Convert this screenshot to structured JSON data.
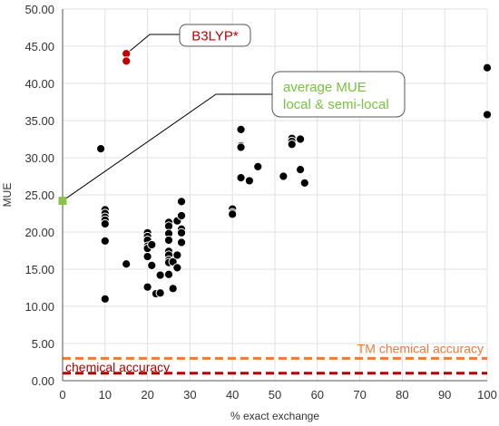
{
  "chart_data": {
    "type": "scatter",
    "xlabel": "% exact exchange",
    "ylabel": "MUE",
    "xlim": [
      0,
      100
    ],
    "ylim": [
      0,
      50
    ],
    "x_ticks": [
      0,
      10,
      20,
      30,
      40,
      50,
      60,
      70,
      80,
      90,
      100
    ],
    "y_ticks": [
      "0.00",
      "5.00",
      "10.00",
      "15.00",
      "20.00",
      "25.00",
      "30.00",
      "35.00",
      "40.00",
      "45.00",
      "50.00"
    ],
    "grid": true,
    "series": [
      {
        "color": "#000000",
        "points": [
          [
            9,
            31.2
          ],
          [
            10,
            23.0
          ],
          [
            10,
            22.5
          ],
          [
            10,
            22.0
          ],
          [
            10,
            21.6
          ],
          [
            10,
            21.1
          ],
          [
            10,
            18.8
          ],
          [
            10,
            11.0
          ],
          [
            15,
            15.7
          ],
          [
            20,
            19.9
          ],
          [
            20,
            19.4
          ],
          [
            20,
            18.9
          ],
          [
            20,
            18.1
          ],
          [
            20,
            17.8
          ],
          [
            20,
            16.7
          ],
          [
            20,
            12.6
          ],
          [
            21,
            18.3
          ],
          [
            21,
            15.5
          ],
          [
            22,
            11.7
          ],
          [
            23,
            11.8
          ],
          [
            23,
            14.2
          ],
          [
            25,
            21.3
          ],
          [
            25,
            20.8
          ],
          [
            25,
            19.8
          ],
          [
            25,
            18.9
          ],
          [
            25,
            17.4
          ],
          [
            25,
            16.9
          ],
          [
            25,
            16.2
          ],
          [
            25,
            15.9
          ],
          [
            25,
            14.3
          ],
          [
            26,
            12.4
          ],
          [
            26,
            16.0
          ],
          [
            27,
            21.5
          ],
          [
            27,
            16.9
          ],
          [
            27,
            15.2
          ],
          [
            28,
            24.1
          ],
          [
            28,
            22.2
          ],
          [
            28,
            20.4
          ],
          [
            28,
            19.9
          ],
          [
            28,
            18.6
          ],
          [
            40,
            23.1
          ],
          [
            40,
            22.6
          ],
          [
            40,
            22.4
          ],
          [
            42,
            33.8
          ],
          [
            42,
            31.6
          ],
          [
            42,
            31.4
          ],
          [
            42,
            27.3
          ],
          [
            44,
            26.9
          ],
          [
            46,
            28.8
          ],
          [
            52,
            27.5
          ],
          [
            54,
            32.6
          ],
          [
            54,
            32.2
          ],
          [
            54,
            31.8
          ],
          [
            56,
            32.5
          ],
          [
            56,
            28.4
          ],
          [
            57,
            26.6
          ],
          [
            100,
            42.1
          ],
          [
            100,
            35.8
          ]
        ]
      },
      {
        "color": "#c00000",
        "points": [
          [
            15,
            44.0
          ],
          [
            15,
            43.0
          ]
        ]
      },
      {
        "color": "#8bc34a",
        "points": [
          [
            0,
            24.2
          ]
        ]
      }
    ],
    "reference_lines": [
      {
        "label": "TM chemical accuracy",
        "y": 3.0,
        "color": "#f07a35"
      },
      {
        "label": "chemical accuracy",
        "y": 1.0,
        "color": "#b00000"
      }
    ],
    "annotations": [
      {
        "text_lines": [
          "B3LYP*"
        ],
        "color": "#c00000",
        "anchor": [
          15,
          44.0
        ]
      },
      {
        "text_lines": [
          "average MUE",
          "local & semi-local"
        ],
        "color": "#7ac143",
        "anchor": [
          0,
          24.2
        ]
      }
    ]
  },
  "colors": {
    "marker_edge": "#ffffff",
    "axis": "#555555",
    "grid": "#e2e2e2",
    "annotation_leader": "#000000"
  }
}
